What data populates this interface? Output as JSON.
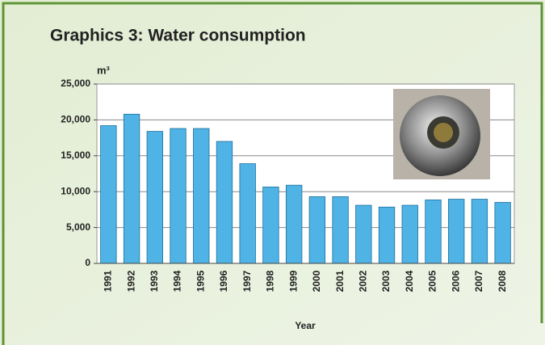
{
  "chart_data": {
    "type": "bar",
    "title": "Graphics 3:  Water consumption",
    "y_unit": "m³",
    "x_label": "Year",
    "categories": [
      "1991",
      "1992",
      "1993",
      "1994",
      "1995",
      "1996",
      "1997",
      "1998",
      "1999",
      "2000",
      "2001",
      "2002",
      "2003",
      "2004",
      "2005",
      "2006",
      "2007",
      "2008"
    ],
    "values": [
      19200,
      20800,
      18400,
      18800,
      18800,
      17000,
      13900,
      10650,
      10900,
      9300,
      9300,
      8100,
      7850,
      8100,
      8850,
      8950,
      8950,
      8500
    ],
    "color": "#4fb3e6",
    "ylim": [
      0,
      25000
    ],
    "yticks": [
      0,
      {
        "value": 5000,
        "label": "5,000"
      },
      {
        "value": 10000,
        "label": "10,000"
      },
      {
        "value": 15000,
        "label": "15,000"
      },
      {
        "value": 20000,
        "label": "20,000"
      },
      {
        "value": 25000,
        "label": "25,000"
      }
    ],
    "grid": true
  }
}
